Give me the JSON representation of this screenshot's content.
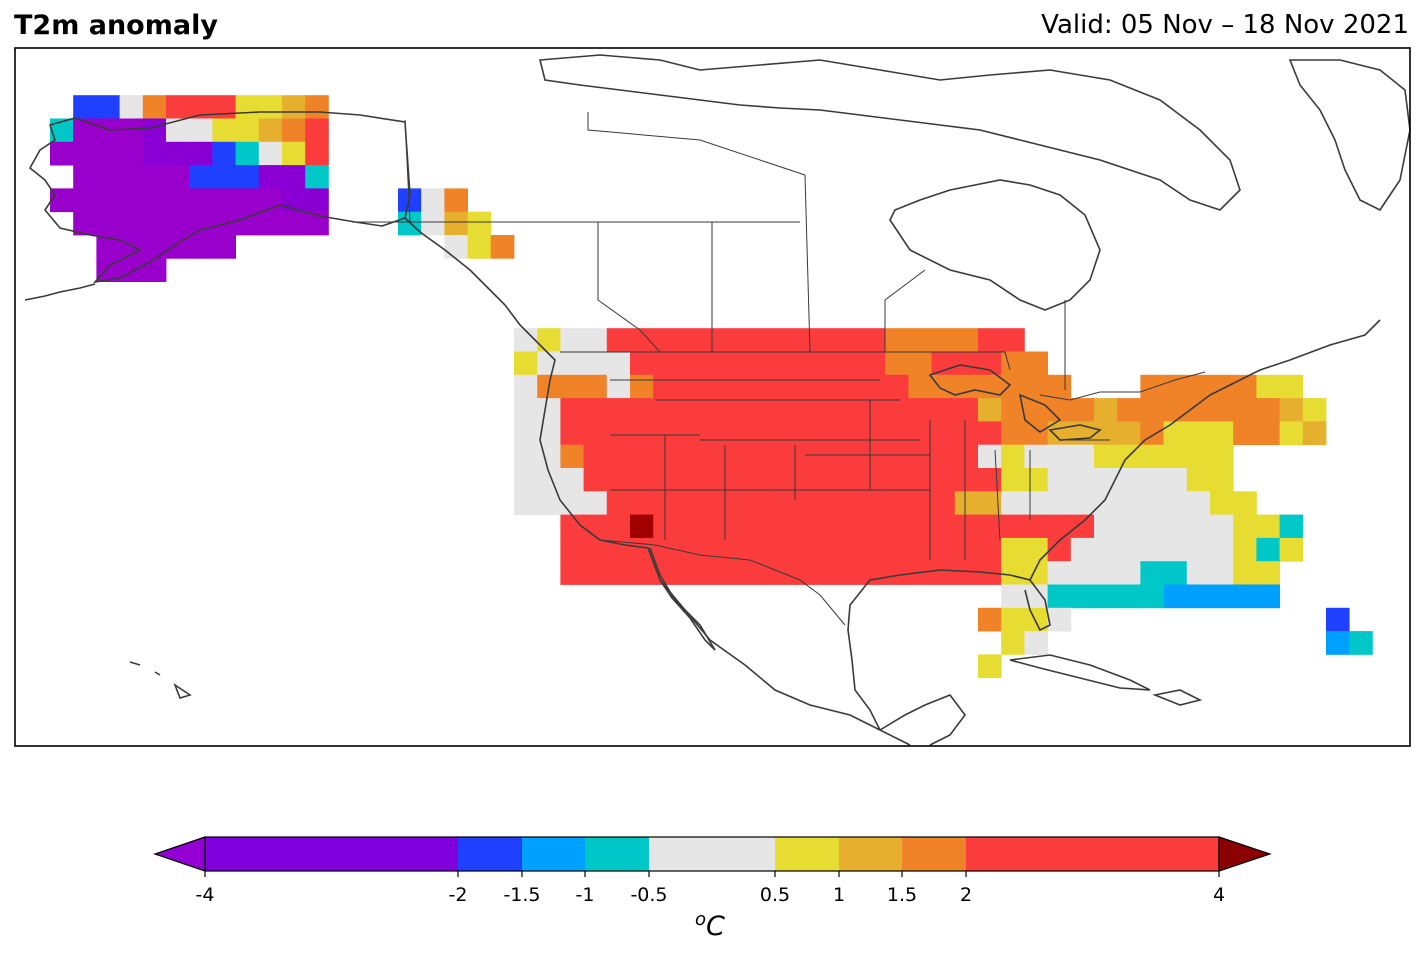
{
  "header": {
    "title": "T2m anomaly",
    "valid": "Valid: 05 Nov – 18 Nov 2021"
  },
  "colorbar": {
    "unit_sup": "o",
    "unit": "C",
    "ticks": [
      "-4",
      "-2",
      "-1.5",
      "-1",
      "-0.5",
      "0.5",
      "1",
      "1.5",
      "2",
      "4"
    ],
    "tick_values": [
      -4,
      -2,
      -1.5,
      -1,
      -0.5,
      0.5,
      1,
      1.5,
      2,
      4
    ],
    "bins": [
      {
        "from": -4,
        "to": -2,
        "color": "#8000de"
      },
      {
        "from": -2,
        "to": -1.5,
        "color": "#2040ff"
      },
      {
        "from": -1.5,
        "to": -1,
        "color": "#00a0ff"
      },
      {
        "from": -1,
        "to": -0.5,
        "color": "#00c8c8"
      },
      {
        "from": -0.5,
        "to": 0.5,
        "color": "#e6e6e6"
      },
      {
        "from": 0.5,
        "to": 1,
        "color": "#e6dc32"
      },
      {
        "from": 1,
        "to": 1.5,
        "color": "#e6af2d"
      },
      {
        "from": 1.5,
        "to": 2,
        "color": "#f08228"
      },
      {
        "from": 2,
        "to": 4,
        "color": "#fa3c3c"
      }
    ],
    "under_color": "#9400d3",
    "over_color": "#8b0000"
  },
  "map": {
    "extent": "North America",
    "color_codes": {
      "P": "#8a00d4",
      "V": "#9900cc",
      "B": "#2040ff",
      "S": "#00a0ff",
      "C": "#00c8c8",
      "G": "#e6e6e6",
      "Y": "#e6dc32",
      "O": "#e6af2d",
      "K": "#f08228",
      "R": "#fa3c3c",
      "D": "#a00000"
    },
    "grid_rows": [
      "......................................................................",
      "......................................................................",
      "......................................................................",
      "......................................................................",
      "...BBGKRRRYYOK........................................................",
      "..CVVVPGGYYOKR........................................................",
      "..VVVVPPPBCGYR........................................................",
      "...VVVVVBBBPPC........................................................",
      "..VVVVVVVVVVPP...BGK..................................................",
      "...VVVVVVVVVVV...CGOY.................................................",
      "....VVVVVV.........GYK................................................",
      "....VVV...............................................................",
      "......................................................................",
      "......................................................................",
      "......................GYGGRRRRRRRRRRRRKKKKRR..........................",
      "......................YGGGGRRRRRRRRRRRKKRRRKK.........................",
      "......................GKKKGKRRRRRRRRRRRKKKKKKK...KKKKKYY..............",
      "......................GGRRRRRRRRRRRRRRRRRROKKKKOKKKKKKKOY.............",
      "......................GGRRRRRRRRRRRRRRRRRRRKKOOOOKYYYKKYO.............",
      "......................GGKRRRRRRRRRRRRRRRRRGYGGGYYYYYY.................",
      "......................GGGRRRRRRRRRRRRRRRRRRYYGGGGGGYY.................",
      "......................GGGGRRRRRRRRRRRRRRROOGGGGGGGGGYY................",
      "........................RRRRRRRRRRRRRRRRRRRRRRRGGGGGGYYC...............",
      "........................RRRRRRRRRRRRRRRRRRRYYRGGGGGGGYCY...............",
      "........................RRRRRRRRRRRRRRRRRRRYYGGGGCCGGYY................",
      "...........................................GGCCCCCSSSSS................",
      "..........................................KYYG...........B.............",
      "...........................................YG............SC............",
      "..........................................Y............................"
    ],
    "special_cells": [
      {
        "row": 22,
        "col": 27,
        "code": "D"
      }
    ]
  }
}
